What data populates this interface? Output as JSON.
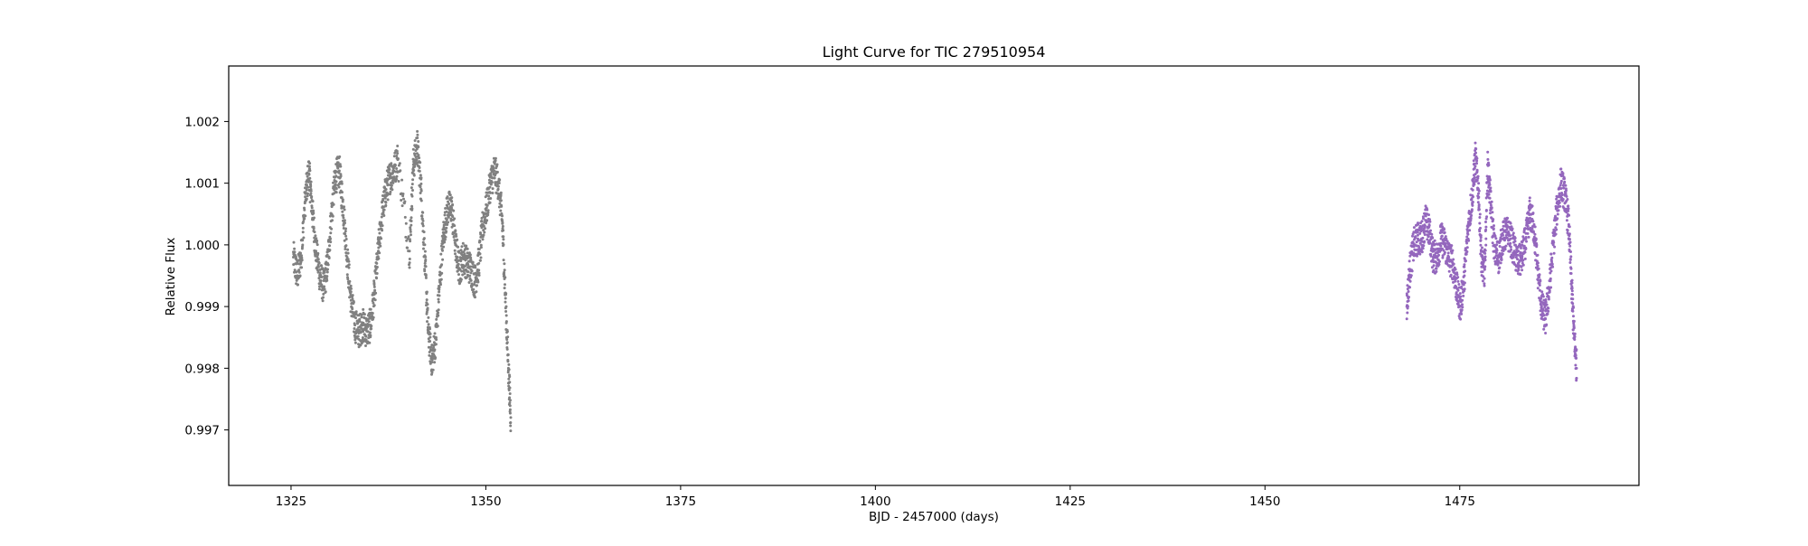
{
  "chart_data": {
    "type": "scatter",
    "title": "Light Curve for TIC 279510954",
    "xlabel": "BJD - 2457000 (days)",
    "ylabel": "Relative Flux",
    "xlim": [
      1317,
      1498
    ],
    "ylim": [
      0.9961,
      1.0029
    ],
    "x_ticks": [
      1325,
      1350,
      1375,
      1400,
      1425,
      1450,
      1475
    ],
    "y_ticks": [
      0.997,
      0.998,
      0.999,
      1.0,
      1.001,
      1.002
    ],
    "y_tick_labels": [
      "0.997",
      "0.998",
      "0.999",
      "1.000",
      "1.001",
      "1.002"
    ],
    "grid": false,
    "legend": "none",
    "series": [
      {
        "color": "#808080",
        "x_range": [
          1325.3,
          1353.2
        ],
        "points": [
          [
            1325.3,
            0.9998
          ],
          [
            1325.8,
            0.9995
          ],
          [
            1326.3,
            0.9998
          ],
          [
            1326.8,
            1.0007
          ],
          [
            1327.3,
            1.0012
          ],
          [
            1327.7,
            1.0006
          ],
          [
            1328.2,
            0.9999
          ],
          [
            1328.7,
            0.9995
          ],
          [
            1329.2,
            0.9993
          ],
          [
            1329.7,
            0.9997
          ],
          [
            1330.2,
            1.0005
          ],
          [
            1330.7,
            1.0011
          ],
          [
            1331.2,
            1.0012
          ],
          [
            1331.7,
            1.0006
          ],
          [
            1332.2,
            0.9998
          ],
          [
            1332.7,
            0.9991
          ],
          [
            1333.2,
            0.9987
          ],
          [
            1333.7,
            0.9986
          ],
          [
            1334.2,
            0.9987
          ],
          [
            1334.7,
            0.9986
          ],
          [
            1335.2,
            0.9987
          ],
          [
            1335.7,
            0.9992
          ],
          [
            1336.2,
            0.9999
          ],
          [
            1336.7,
            1.0005
          ],
          [
            1337.2,
            1.0009
          ],
          [
            1337.7,
            1.0011
          ],
          [
            1338.2,
            1.0012
          ],
          [
            1338.7,
            1.0014
          ],
          [
            1340.2,
            0.9999
          ],
          [
            1340.7,
            1.0013
          ],
          [
            1341.2,
            1.0016
          ],
          [
            1341.7,
            1.0009
          ],
          [
            1342.2,
            0.9997
          ],
          [
            1342.6,
            0.9986
          ],
          [
            1343.1,
            0.9981
          ],
          [
            1343.6,
            0.9985
          ],
          [
            1344.1,
            0.9994
          ],
          [
            1344.6,
            1.0002
          ],
          [
            1345.1,
            1.0006
          ],
          [
            1345.6,
            1.0006
          ],
          [
            1346.1,
            1.0
          ],
          [
            1346.6,
            0.9996
          ],
          [
            1347.1,
            0.9998
          ],
          [
            1347.6,
            0.9997
          ],
          [
            1348.1,
            0.9996
          ],
          [
            1348.6,
            0.9994
          ],
          [
            1349.1,
            0.9997
          ],
          [
            1349.6,
            1.0003
          ],
          [
            1350.1,
            1.0006
          ],
          [
            1350.6,
            1.001
          ],
          [
            1351.1,
            1.0012
          ],
          [
            1351.6,
            1.001
          ],
          [
            1352.1,
            1.0004
          ],
          [
            1352.5,
            0.9992
          ],
          [
            1352.9,
            0.998
          ],
          [
            1353.2,
            0.9972
          ]
        ]
      },
      {
        "color": "#9467bd",
        "x_range": [
          1468.2,
          1490.0
        ],
        "points": [
          [
            1468.2,
            0.999
          ],
          [
            1468.6,
            0.9996
          ],
          [
            1469.1,
            1.0
          ],
          [
            1469.6,
            1.0001
          ],
          [
            1470.1,
            1.0001
          ],
          [
            1470.6,
            1.0004
          ],
          [
            1471.1,
            1.0002
          ],
          [
            1471.6,
            0.9998
          ],
          [
            1472.1,
            0.9998
          ],
          [
            1472.6,
            1.0001
          ],
          [
            1473.1,
            1.0
          ],
          [
            1473.6,
            0.9998
          ],
          [
            1474.1,
            0.9997
          ],
          [
            1474.6,
            0.9993
          ],
          [
            1475.1,
            0.999
          ],
          [
            1475.6,
            0.9995
          ],
          [
            1476.1,
            1.0003
          ],
          [
            1476.6,
            1.0008
          ],
          [
            1477.0,
            1.0014
          ],
          [
            1477.4,
            1.0009
          ],
          [
            1477.8,
            0.9997
          ],
          [
            1478.2,
            0.9996
          ],
          [
            1478.6,
            1.0013
          ],
          [
            1479.0,
            1.0006
          ],
          [
            1479.5,
            0.9999
          ],
          [
            1480.0,
            0.9998
          ],
          [
            1480.5,
            1.0001
          ],
          [
            1481.0,
            1.0002
          ],
          [
            1481.5,
            1.0001
          ],
          [
            1482.0,
            0.9999
          ],
          [
            1482.5,
            0.9997
          ],
          [
            1483.0,
            0.9998
          ],
          [
            1483.5,
            1.0001
          ],
          [
            1484.0,
            1.0005
          ],
          [
            1484.5,
            1.0003
          ],
          [
            1485.0,
            0.9996
          ],
          [
            1485.5,
            0.999
          ],
          [
            1486.0,
            0.9988
          ],
          [
            1486.5,
            0.9993
          ],
          [
            1487.0,
            1.0
          ],
          [
            1487.5,
            1.0006
          ],
          [
            1488.0,
            1.001
          ],
          [
            1488.5,
            1.0008
          ],
          [
            1489.0,
            1.0003
          ],
          [
            1489.4,
            0.9992
          ],
          [
            1489.7,
            0.9985
          ],
          [
            1490.0,
            0.998
          ]
        ]
      }
    ]
  }
}
